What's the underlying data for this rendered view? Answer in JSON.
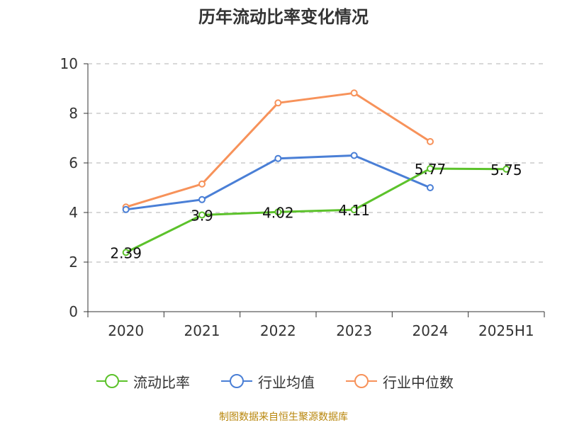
{
  "title": "历年流动比率变化情况",
  "source": "制图数据来自恒生聚源数据库",
  "colors": {
    "current_ratio": "#5cc22b",
    "industry_mean": "#4a7fd6",
    "industry_median": "#f7925a",
    "axis": "#333333",
    "grid": "#cccccc"
  },
  "chart_data": {
    "type": "line",
    "categories": [
      "2020",
      "2021",
      "2022",
      "2023",
      "2024",
      "2025H1"
    ],
    "ylim": [
      0,
      10
    ],
    "yticks": [
      0,
      2,
      4,
      6,
      8,
      10
    ],
    "grid": true,
    "legend_position": "bottom",
    "series": [
      {
        "name": "流动比率",
        "color": "#5cc22b",
        "values": [
          2.39,
          3.9,
          4.02,
          4.11,
          5.77,
          5.75
        ],
        "labels": [
          "2.39",
          "3.9",
          "4.02",
          "4.11",
          "5.77",
          "5.75"
        ]
      },
      {
        "name": "行业均值",
        "color": "#4a7fd6",
        "values": [
          4.12,
          4.52,
          6.18,
          6.3,
          5.0,
          null
        ]
      },
      {
        "name": "行业中位数",
        "color": "#f7925a",
        "values": [
          4.22,
          5.15,
          8.42,
          8.82,
          6.86,
          null
        ]
      }
    ]
  }
}
